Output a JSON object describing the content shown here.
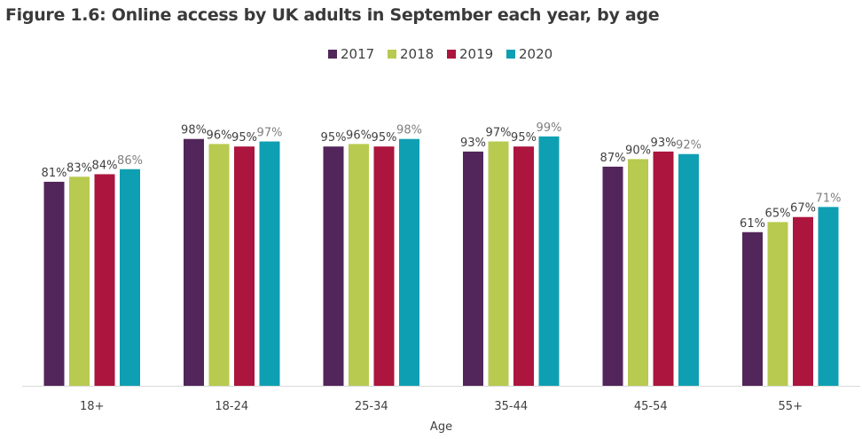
{
  "chart_data": {
    "type": "bar",
    "title": "Figure 1.6: Online access by UK adults in September each year, by age",
    "xlabel": "Age",
    "ylabel": "",
    "ylim": [
      0,
      100
    ],
    "grid": false,
    "legend_placement": "top-right",
    "categories": [
      "18+",
      "18-24",
      "25-34",
      "35-44",
      "45-54",
      "55+"
    ],
    "series": [
      {
        "name": "2017",
        "color": "#52265a",
        "values": [
          81,
          98,
          95,
          93,
          87,
          61
        ]
      },
      {
        "name": "2018",
        "color": "#b8ca4f",
        "values": [
          83,
          96,
          96,
          97,
          90,
          65
        ]
      },
      {
        "name": "2019",
        "color": "#ab153e",
        "values": [
          84,
          95,
          95,
          95,
          93,
          67
        ]
      },
      {
        "name": "2020",
        "color": "#0f9fb2",
        "values": [
          86,
          97,
          98,
          99,
          92,
          71
        ]
      }
    ],
    "value_suffix": "%"
  }
}
